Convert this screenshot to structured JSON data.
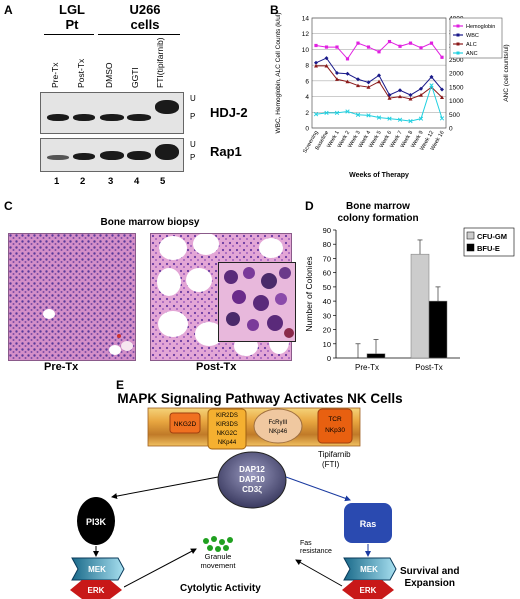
{
  "panel_a": {
    "label": "A",
    "group1": [
      "LGL",
      "Pt"
    ],
    "group2": [
      "U266",
      "cells"
    ],
    "lanes": [
      "Pre-Tx",
      "Post-Tx",
      "DMSO",
      "GGTI",
      "FTI(tipifarnib)"
    ],
    "lane_numbers": [
      "1",
      "2",
      "3",
      "4",
      "5"
    ],
    "blots": [
      {
        "protein": "HDJ-2",
        "u": "U",
        "p": "P"
      },
      {
        "protein": "Rap1",
        "u": "U",
        "p": "P"
      }
    ]
  },
  "panel_b": {
    "label": "B"
  },
  "chart_data": {
    "type": "line",
    "xlabel": "Weeks of Therapy",
    "ylabel_left": "WBC, Hemoglobin, ALC Cell Counts (k/ul)",
    "ylabel_right": "ANC (cell counts/ul)",
    "ylim_left": [
      0,
      14
    ],
    "ylim_right": [
      0,
      4000
    ],
    "yticks_left": [
      "0",
      "2",
      "4",
      "6",
      "8",
      "10",
      "12",
      "14"
    ],
    "yticks_right": [
      "0",
      "500",
      "1000",
      "1500",
      "2000",
      "2500",
      "3000",
      "3500",
      "4000"
    ],
    "categories": [
      "Screening",
      "Baseline",
      "Week 1",
      "Week 2",
      "Week 3",
      "Week 4",
      "Week 5",
      "Week 6",
      "Week 7",
      "Week 8",
      "Week 9",
      "Week 12",
      "Week 16"
    ],
    "legend_position": "top-right",
    "series": [
      {
        "name": "Hemoglobin",
        "axis": "left",
        "color": "#e020e0",
        "marker": "square",
        "values": [
          10.5,
          10.3,
          10.3,
          8.8,
          10.8,
          10.3,
          9.7,
          11.0,
          10.4,
          10.8,
          10.2,
          10.8,
          9.0
        ]
      },
      {
        "name": "WBC",
        "axis": "left",
        "color": "#1a1a8a",
        "marker": "diamond",
        "values": [
          8.3,
          8.9,
          7.0,
          6.9,
          6.2,
          5.8,
          6.7,
          4.2,
          4.8,
          4.2,
          5.0,
          6.5,
          4.9
        ]
      },
      {
        "name": "ALC",
        "axis": "left",
        "color": "#8b1a1a",
        "marker": "triangle",
        "values": [
          7.9,
          7.9,
          6.2,
          5.9,
          5.4,
          5.2,
          5.9,
          3.8,
          4.0,
          3.7,
          4.2,
          5.2,
          3.9
        ]
      },
      {
        "name": "ANC",
        "axis": "right",
        "color": "#20d0e0",
        "marker": "x",
        "values": [
          500,
          550,
          550,
          600,
          480,
          460,
          380,
          340,
          300,
          250,
          340,
          1550,
          350
        ]
      }
    ]
  },
  "panel_c": {
    "label": "C",
    "title": "Bone marrow biopsy",
    "captions": [
      "Pre-Tx",
      "Post-Tx"
    ]
  },
  "panel_d": {
    "label": "D",
    "title_lines": [
      "Bone marrow",
      "colony formation"
    ],
    "chart_data": {
      "type": "bar",
      "categories": [
        "Pre-Tx",
        "Post-Tx"
      ],
      "ylabel": "Number of Colonies",
      "ylim": [
        0,
        90
      ],
      "yticks": [
        "0",
        "10",
        "20",
        "30",
        "40",
        "50",
        "60",
        "70",
        "80",
        "90"
      ],
      "legend_position": "top-right",
      "series": [
        {
          "name": "CFU-GM",
          "color": "#cccccc",
          "values": [
            0,
            73
          ],
          "errors": [
            10,
            10
          ]
        },
        {
          "name": "BFU-E",
          "color": "#000000",
          "values": [
            3,
            40
          ],
          "errors": [
            10,
            10
          ]
        }
      ]
    }
  },
  "panel_e": {
    "label": "E",
    "title": "MAPK Signaling Pathway Activates NK Cells",
    "receptors": {
      "nkg2d": "NKG2D",
      "kir": [
        "KIR2DS",
        "KIR3DS",
        "NKG2C",
        "NKp44"
      ],
      "fcr": [
        "FcRγIII",
        "NKp46"
      ],
      "tcr": [
        "TCR",
        "NKp30"
      ]
    },
    "adaptor": [
      "DAP12",
      "DAP10",
      "CD3ζ"
    ],
    "tipifarnib": [
      "Tipifarnib",
      "(FTI)"
    ],
    "pi3k": "PI3K",
    "ras": "Ras",
    "mek": "MEK",
    "erk": "ERK",
    "granule": [
      "Granule",
      "movement"
    ],
    "fas": [
      "Fas",
      "resistance"
    ],
    "cytolytic": "Cytolytic Activity",
    "survival": [
      "Survival and",
      "Expansion"
    ]
  }
}
